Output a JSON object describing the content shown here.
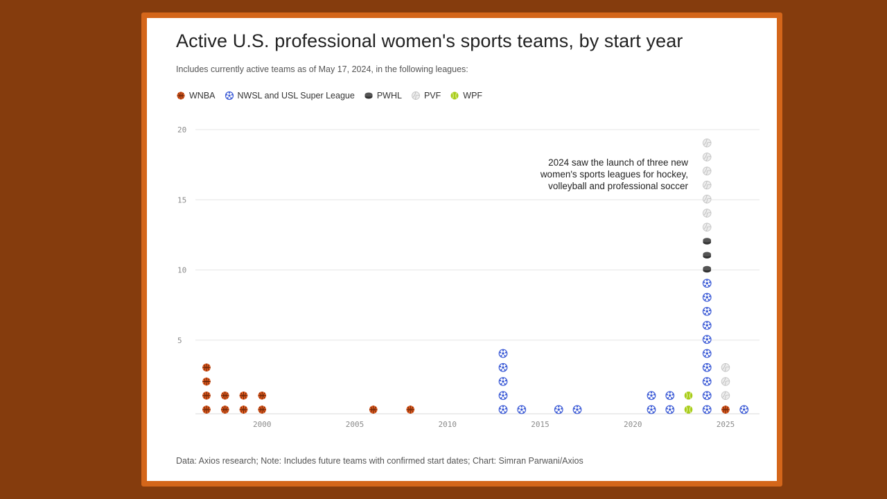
{
  "title": "Active U.S. professional women's sports teams, by start year",
  "subtitle": "Includes currently active teams as of May 17, 2024, in the following leagues:",
  "legend": [
    {
      "label": "WNBA",
      "icon": "basketball-icon"
    },
    {
      "label": "NWSL and USL Super League",
      "icon": "soccer-ball-icon"
    },
    {
      "label": "PWHL",
      "icon": "hockey-puck-icon"
    },
    {
      "label": "PVF",
      "icon": "volleyball-icon"
    },
    {
      "label": "WPF",
      "icon": "softball-icon"
    }
  ],
  "annotation": {
    "line1": "2024 saw the launch of three new",
    "line2": "women's sports leagues for hockey,",
    "line3": "volleyball and professional soccer"
  },
  "footer": "Data: Axios research; Note: Includes future teams with confirmed start dates; Chart: Simran Parwani/Axios",
  "colors": {
    "WNBA": "#e05a1e",
    "NWSL": "#3c5bd6",
    "PWHL": "#555555",
    "PVF": "#d6d6d6",
    "WPF": "#a8cc1a",
    "background": "#853c0d",
    "frame": "#d4661a"
  },
  "chart_data": {
    "type": "scatter",
    "xlim": [
      1997,
      2026
    ],
    "ylim": [
      0,
      20
    ],
    "x_ticks": [
      2000,
      2005,
      2010,
      2015,
      2020,
      2025
    ],
    "y_ticks": [
      5,
      10,
      15,
      20
    ],
    "grid": true,
    "legend_position": "top-left",
    "series": [
      {
        "name": "WNBA",
        "points": [
          {
            "year": 1997,
            "count": 4
          },
          {
            "year": 1998,
            "count": 2
          },
          {
            "year": 1999,
            "count": 2
          },
          {
            "year": 2000,
            "count": 2
          },
          {
            "year": 2006,
            "count": 1
          },
          {
            "year": 2008,
            "count": 1
          },
          {
            "year": 2025,
            "count": 1
          }
        ]
      },
      {
        "name": "NWSL and USL Super League",
        "points": [
          {
            "year": 2013,
            "count": 5
          },
          {
            "year": 2014,
            "count": 1
          },
          {
            "year": 2016,
            "count": 1
          },
          {
            "year": 2017,
            "count": 1
          },
          {
            "year": 2021,
            "count": 2
          },
          {
            "year": 2022,
            "count": 2
          },
          {
            "year": 2024,
            "count": 10
          },
          {
            "year": 2026,
            "count": 1
          }
        ]
      },
      {
        "name": "PWHL",
        "points": [
          {
            "year": 2024,
            "count": 3
          }
        ]
      },
      {
        "name": "PVF",
        "points": [
          {
            "year": 2024,
            "count": 7
          },
          {
            "year": 2025,
            "count": 3
          }
        ]
      },
      {
        "name": "WPF",
        "points": [
          {
            "year": 2023,
            "count": 2
          }
        ]
      }
    ],
    "stack_order": {
      "1997": [
        "WNBA"
      ],
      "1998": [
        "WNBA"
      ],
      "1999": [
        "WNBA"
      ],
      "2000": [
        "WNBA"
      ],
      "2006": [
        "WNBA"
      ],
      "2008": [
        "WNBA"
      ],
      "2013": [
        "NWSL and USL Super League"
      ],
      "2014": [
        "NWSL and USL Super League"
      ],
      "2016": [
        "NWSL and USL Super League"
      ],
      "2017": [
        "NWSL and USL Super League"
      ],
      "2021": [
        "NWSL and USL Super League"
      ],
      "2022": [
        "NWSL and USL Super League"
      ],
      "2023": [
        "WPF"
      ],
      "2024": [
        "NWSL and USL Super League",
        "PWHL",
        "PVF"
      ],
      "2025": [
        "WNBA",
        "PVF"
      ],
      "2026": [
        "NWSL and USL Super League"
      ]
    }
  }
}
